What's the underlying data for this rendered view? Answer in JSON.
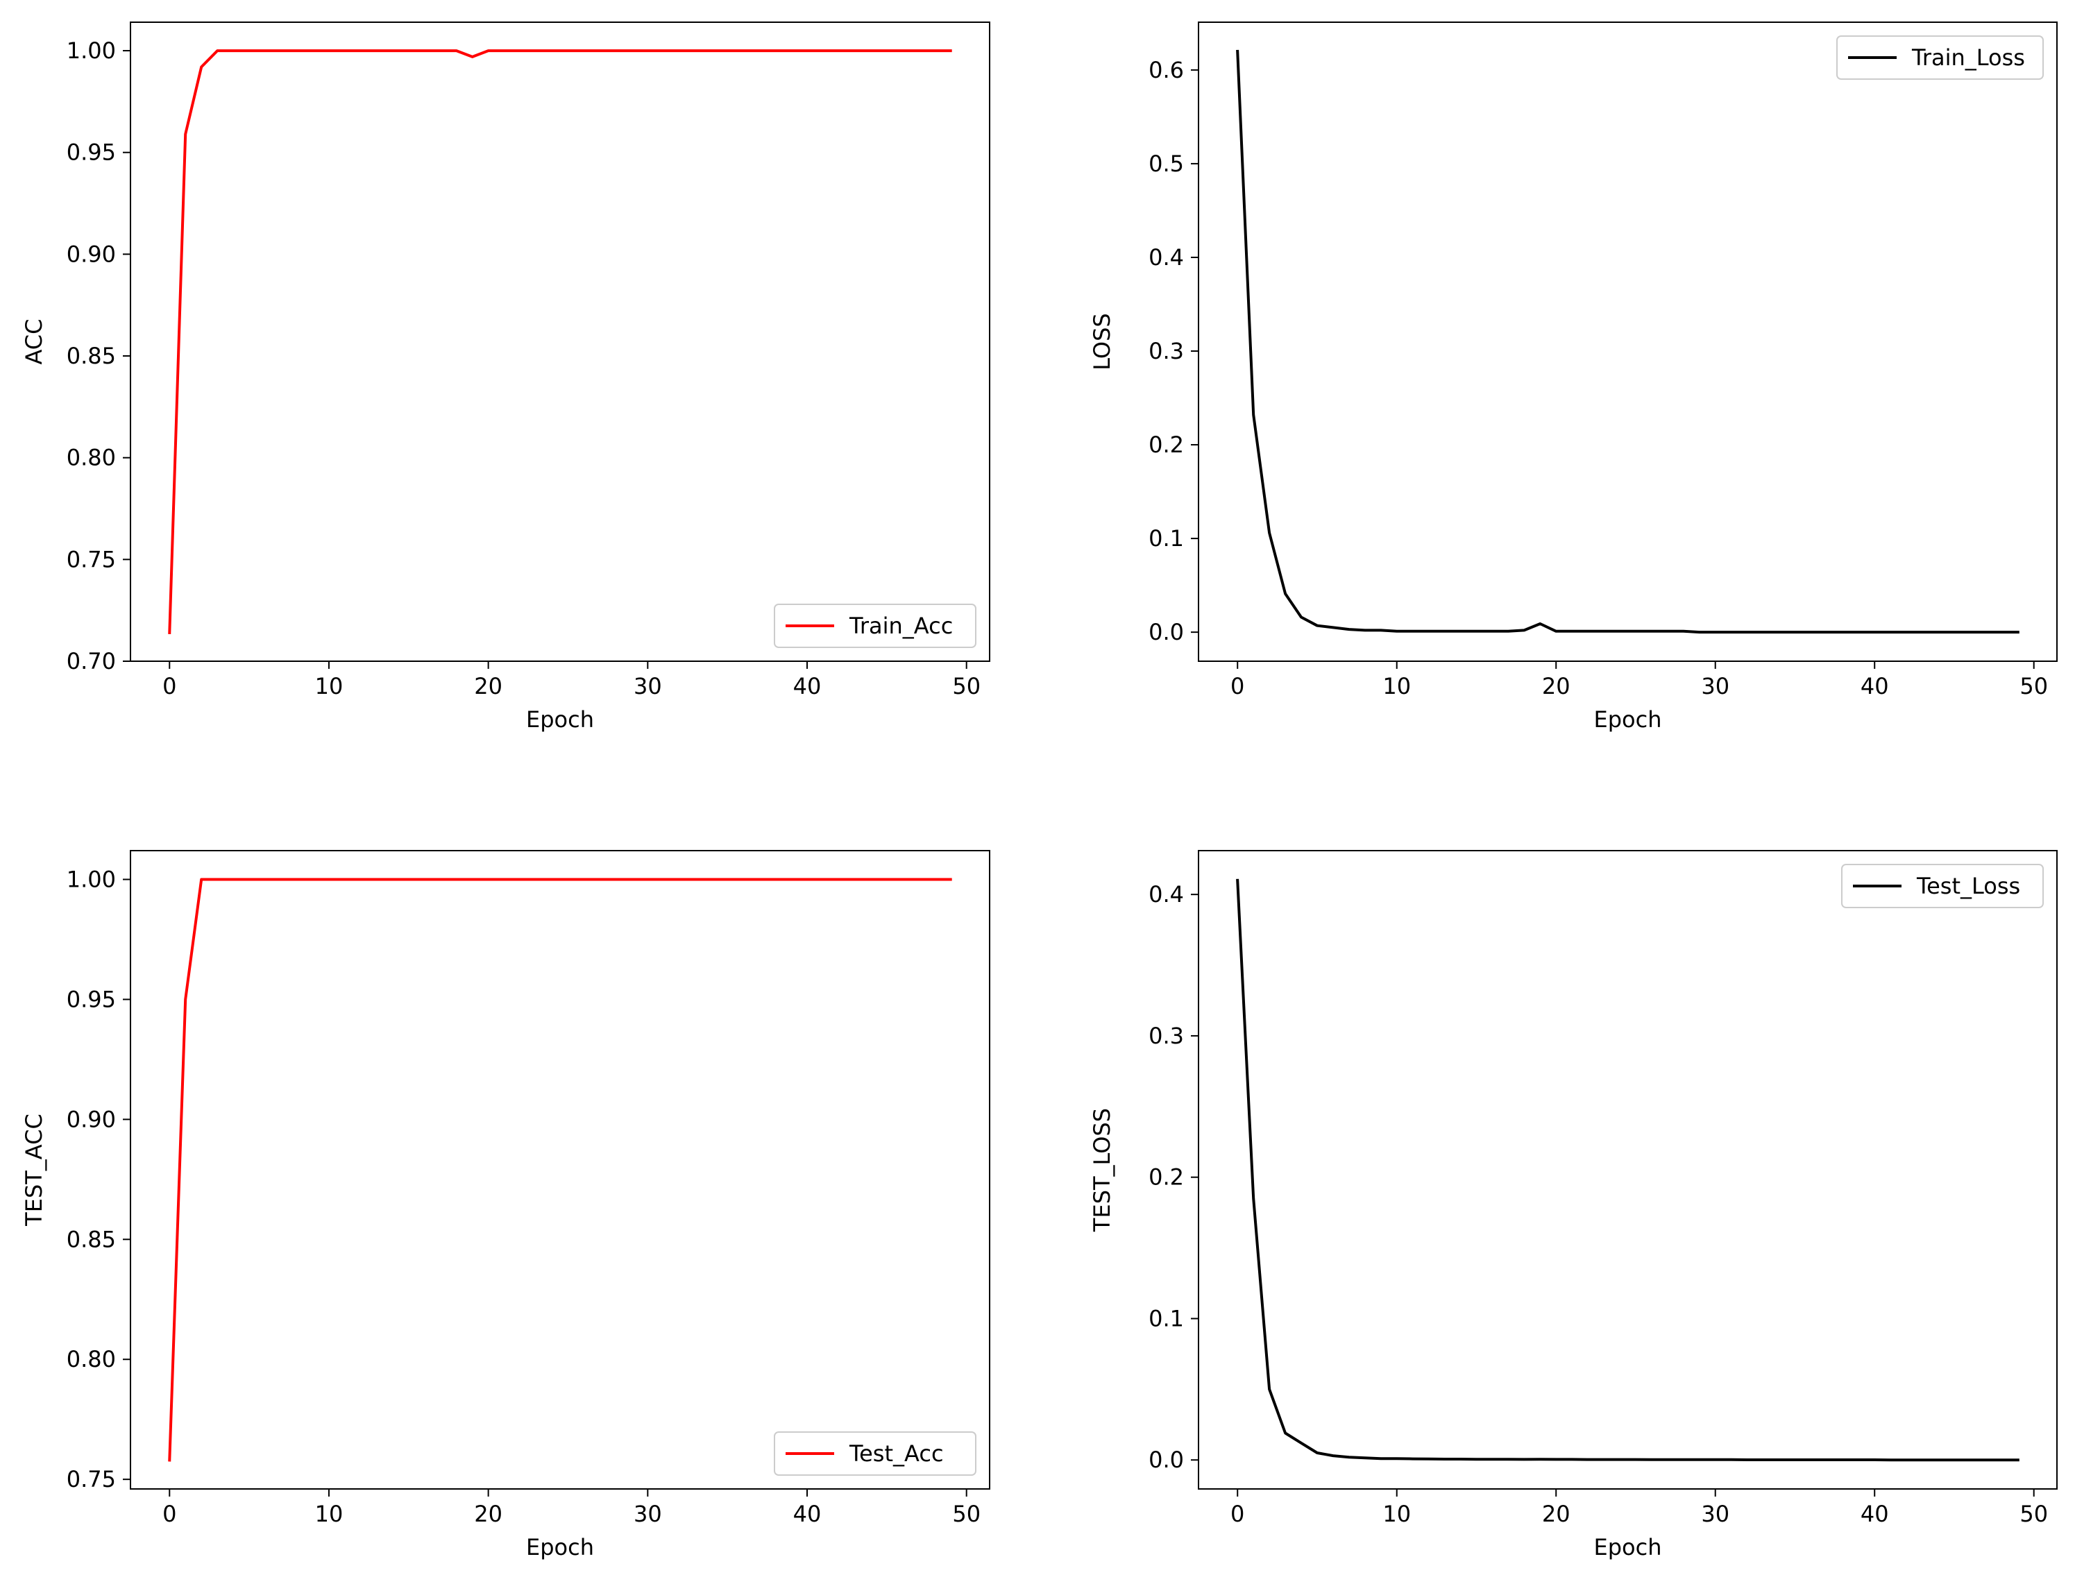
{
  "chart_data": [
    {
      "type": "line",
      "xlabel": "Epoch",
      "ylabel": "ACC",
      "xlim": [
        -2.45,
        51.45
      ],
      "ylim": [
        0.7,
        1.014
      ],
      "xticks": [
        "0",
        "10",
        "20",
        "30",
        "40",
        "50"
      ],
      "yticks": [
        "0.70",
        "0.75",
        "0.80",
        "0.85",
        "0.90",
        "0.95",
        "1.00"
      ],
      "legend": "lower-right",
      "grid": false,
      "series": [
        {
          "name": "Train_Acc",
          "color": "#ff0000",
          "x": [
            0,
            1,
            2,
            3,
            4,
            5,
            6,
            7,
            8,
            9,
            10,
            11,
            12,
            13,
            14,
            15,
            16,
            17,
            18,
            19,
            20,
            21,
            22,
            23,
            24,
            25,
            26,
            27,
            28,
            29,
            30,
            31,
            32,
            33,
            34,
            35,
            36,
            37,
            38,
            39,
            40,
            41,
            42,
            43,
            44,
            45,
            46,
            47,
            48,
            49
          ],
          "y": [
            0.714,
            0.959,
            0.992,
            1.0,
            1.0,
            1.0,
            1.0,
            1.0,
            1.0,
            1.0,
            1.0,
            1.0,
            1.0,
            1.0,
            1.0,
            1.0,
            1.0,
            1.0,
            1.0,
            0.997,
            1.0,
            1.0,
            1.0,
            1.0,
            1.0,
            1.0,
            1.0,
            1.0,
            1.0,
            1.0,
            1.0,
            1.0,
            1.0,
            1.0,
            1.0,
            1.0,
            1.0,
            1.0,
            1.0,
            1.0,
            1.0,
            1.0,
            1.0,
            1.0,
            1.0,
            1.0,
            1.0,
            1.0,
            1.0,
            1.0
          ]
        }
      ]
    },
    {
      "type": "line",
      "xlabel": "Epoch",
      "ylabel": "LOSS",
      "xlim": [
        -2.45,
        51.45
      ],
      "ylim": [
        -0.031,
        0.651
      ],
      "xticks": [
        "0",
        "10",
        "20",
        "30",
        "40",
        "50"
      ],
      "yticks": [
        "0.0",
        "0.1",
        "0.2",
        "0.3",
        "0.4",
        "0.5",
        "0.6"
      ],
      "legend": "upper-right",
      "grid": false,
      "series": [
        {
          "name": "Train_Loss",
          "color": "#000000",
          "x": [
            0,
            1,
            2,
            3,
            4,
            5,
            6,
            7,
            8,
            9,
            10,
            11,
            12,
            13,
            14,
            15,
            16,
            17,
            18,
            19,
            20,
            21,
            22,
            23,
            24,
            25,
            26,
            27,
            28,
            29,
            30,
            31,
            32,
            33,
            34,
            35,
            36,
            37,
            38,
            39,
            40,
            41,
            42,
            43,
            44,
            45,
            46,
            47,
            48,
            49
          ],
          "y": [
            0.62,
            0.232,
            0.106,
            0.041,
            0.016,
            0.007,
            0.005,
            0.003,
            0.002,
            0.002,
            0.001,
            0.001,
            0.001,
            0.001,
            0.001,
            0.001,
            0.001,
            0.001,
            0.002,
            0.009,
            0.001,
            0.001,
            0.001,
            0.001,
            0.001,
            0.001,
            0.001,
            0.001,
            0.001,
            0.0,
            0.0,
            0.0,
            0.0,
            0.0,
            0.0,
            0.0,
            0.0,
            0.0,
            0.0,
            0.0,
            0.0,
            0.0,
            0.0,
            0.0,
            0.0,
            0.0,
            0.0,
            0.0,
            0.0,
            0.0
          ]
        }
      ]
    },
    {
      "type": "line",
      "xlabel": "Epoch",
      "ylabel": "TEST_ACC",
      "xlim": [
        -2.45,
        51.45
      ],
      "ylim": [
        0.746,
        1.012
      ],
      "xticks": [
        "0",
        "10",
        "20",
        "30",
        "40",
        "50"
      ],
      "yticks": [
        "0.75",
        "0.80",
        "0.85",
        "0.90",
        "0.95",
        "1.00"
      ],
      "legend": "lower-right",
      "grid": false,
      "series": [
        {
          "name": "Test_Acc",
          "color": "#ff0000",
          "x": [
            0,
            1,
            2,
            3,
            4,
            5,
            6,
            7,
            8,
            9,
            10,
            11,
            12,
            13,
            14,
            15,
            16,
            17,
            18,
            19,
            20,
            21,
            22,
            23,
            24,
            25,
            26,
            27,
            28,
            29,
            30,
            31,
            32,
            33,
            34,
            35,
            36,
            37,
            38,
            39,
            40,
            41,
            42,
            43,
            44,
            45,
            46,
            47,
            48,
            49
          ],
          "y": [
            0.758,
            0.95,
            1.0,
            1.0,
            1.0,
            1.0,
            1.0,
            1.0,
            1.0,
            1.0,
            1.0,
            1.0,
            1.0,
            1.0,
            1.0,
            1.0,
            1.0,
            1.0,
            1.0,
            1.0,
            1.0,
            1.0,
            1.0,
            1.0,
            1.0,
            1.0,
            1.0,
            1.0,
            1.0,
            1.0,
            1.0,
            1.0,
            1.0,
            1.0,
            1.0,
            1.0,
            1.0,
            1.0,
            1.0,
            1.0,
            1.0,
            1.0,
            1.0,
            1.0,
            1.0,
            1.0,
            1.0,
            1.0,
            1.0,
            1.0
          ]
        }
      ]
    },
    {
      "type": "line",
      "xlabel": "Epoch",
      "ylabel": "TEST_LOSS",
      "xlim": [
        -2.45,
        51.45
      ],
      "ylim": [
        -0.0205,
        0.431
      ],
      "xticks": [
        "0",
        "10",
        "20",
        "30",
        "40",
        "50"
      ],
      "yticks": [
        "0.0",
        "0.1",
        "0.2",
        "0.3",
        "0.4"
      ],
      "legend": "upper-right",
      "grid": false,
      "series": [
        {
          "name": "Test_Loss",
          "color": "#000000",
          "x": [
            0,
            1,
            2,
            3,
            4,
            5,
            6,
            7,
            8,
            9,
            10,
            11,
            12,
            13,
            14,
            15,
            16,
            17,
            18,
            19,
            20,
            21,
            22,
            23,
            24,
            25,
            26,
            27,
            28,
            29,
            30,
            31,
            32,
            33,
            34,
            35,
            36,
            37,
            38,
            39,
            40,
            41,
            42,
            43,
            44,
            45,
            46,
            47,
            48,
            49
          ],
          "y": [
            0.41,
            0.185,
            0.05,
            0.019,
            0.012,
            0.005,
            0.003,
            0.002,
            0.0015,
            0.001,
            0.001,
            0.0008,
            0.0007,
            0.0006,
            0.0006,
            0.0005,
            0.0005,
            0.0005,
            0.0004,
            0.0005,
            0.0004,
            0.0004,
            0.0003,
            0.0003,
            0.0003,
            0.0003,
            0.0002,
            0.0002,
            0.0002,
            0.0002,
            0.0002,
            0.0002,
            0.0001,
            0.0001,
            0.0001,
            0.0001,
            0.0001,
            0.0001,
            0.0001,
            0.0001,
            0.0001,
            0.0,
            0.0,
            0.0,
            0.0,
            0.0,
            0.0,
            0.0,
            0.0,
            0.0
          ]
        }
      ]
    }
  ]
}
